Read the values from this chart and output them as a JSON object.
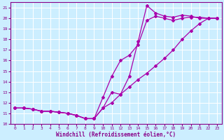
{
  "xlabel": "Windchill (Refroidissement éolien,°C)",
  "bg_color": "#cceeff",
  "line_color": "#aa00aa",
  "xlim": [
    -0.5,
    23.5
  ],
  "ylim": [
    10,
    21.5
  ],
  "xticks": [
    0,
    1,
    2,
    3,
    4,
    5,
    6,
    7,
    8,
    9,
    10,
    11,
    12,
    13,
    14,
    15,
    16,
    17,
    18,
    19,
    20,
    21,
    22,
    23
  ],
  "yticks": [
    10,
    11,
    12,
    13,
    14,
    15,
    16,
    17,
    18,
    19,
    20,
    21
  ],
  "line1_x": [
    0,
    1,
    2,
    3,
    4,
    5,
    6,
    7,
    8,
    9,
    10,
    11,
    12,
    13,
    14,
    15,
    16,
    17,
    18,
    19,
    20,
    21,
    22,
    23
  ],
  "line1_y": [
    11.5,
    11.5,
    11.4,
    11.2,
    11.2,
    11.1,
    11.0,
    10.8,
    10.5,
    10.5,
    11.5,
    13.0,
    12.8,
    14.5,
    17.8,
    21.2,
    20.5,
    20.2,
    20.1,
    20.3,
    20.2,
    20.0,
    20.0,
    20.0
  ],
  "line2_x": [
    0,
    1,
    2,
    3,
    4,
    5,
    6,
    7,
    8,
    9,
    10,
    11,
    12,
    13,
    14,
    15,
    16,
    17,
    18,
    19,
    20,
    21,
    22,
    23
  ],
  "line2_y": [
    11.5,
    11.5,
    11.4,
    11.2,
    11.2,
    11.1,
    11.0,
    10.8,
    10.5,
    10.5,
    11.5,
    12.0,
    12.8,
    13.5,
    14.2,
    14.8,
    15.5,
    16.2,
    17.0,
    18.0,
    18.8,
    19.5,
    20.0,
    20.0
  ],
  "line3_x": [
    0,
    1,
    2,
    3,
    4,
    5,
    6,
    7,
    8,
    9,
    10,
    11,
    12,
    13,
    14,
    15,
    16,
    17,
    18,
    19,
    20,
    21,
    22,
    23
  ],
  "line3_y": [
    11.5,
    11.5,
    11.4,
    11.2,
    11.2,
    11.1,
    11.0,
    10.8,
    10.5,
    10.5,
    12.5,
    14.5,
    16.0,
    16.5,
    17.5,
    19.8,
    20.2,
    20.0,
    19.8,
    20.0,
    20.1,
    20.1,
    20.0,
    20.0
  ]
}
